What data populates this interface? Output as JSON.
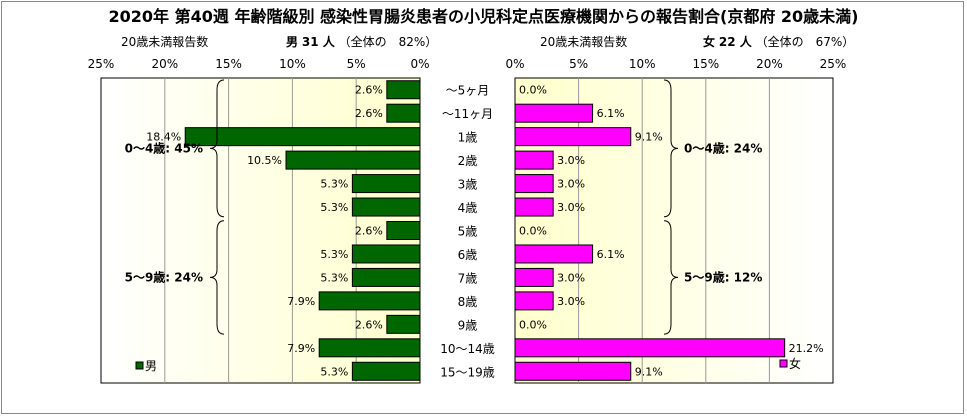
{
  "title": "2020年 第40週 年齢階級別 感染性胃腸炎患者の小児科定点医療機関からの報告割合(京都府 20歳未満)",
  "left_header": {
    "axis_caption": "20歳未満報告数",
    "sex": "男",
    "count": "31 人",
    "share": "（全体の　82%）"
  },
  "right_header": {
    "axis_caption": "20歳未満報告数",
    "sex": "女",
    "count": "22 人",
    "share": "（全体の　67%）"
  },
  "colors": {
    "male": "#006600",
    "female": "#ff00ff",
    "plot_bg_gradient": [
      "#ffffff",
      "#ffffcc"
    ],
    "grid": "#999999"
  },
  "chart_data": [
    {
      "type": "bar",
      "orientation": "horizontal-reversed",
      "series": [
        {
          "name": "男",
          "values": [
            2.6,
            2.6,
            18.4,
            10.5,
            5.3,
            5.3,
            2.6,
            5.3,
            5.3,
            7.9,
            2.6,
            7.9,
            5.3
          ]
        }
      ],
      "categories": [
        "～5ヶ月",
        "～11ヶ月",
        "1歳",
        "2歳",
        "3歳",
        "4歳",
        "5歳",
        "6歳",
        "7歳",
        "8歳",
        "9歳",
        "10～14歳",
        "15～19歳"
      ],
      "value_labels": [
        "2.6%",
        "2.6%",
        "18.4%",
        "10.5%",
        "5.3%",
        "5.3%",
        "2.6%",
        "5.3%",
        "5.3%",
        "7.9%",
        "2.6%",
        "7.9%",
        "5.3%"
      ],
      "xlim": [
        0,
        25
      ],
      "xticks": [
        "25%",
        "20%",
        "15%",
        "10%",
        "5%",
        "0%"
      ],
      "grid": true,
      "legend": "bottom-left",
      "annotations": [
        {
          "text": "0～4歳: 45%",
          "from": 0,
          "to": 5
        },
        {
          "text": "5～9歳: 24%",
          "from": 6,
          "to": 10
        }
      ]
    },
    {
      "type": "bar",
      "orientation": "horizontal",
      "series": [
        {
          "name": "女",
          "values": [
            0.0,
            6.1,
            9.1,
            3.0,
            3.0,
            3.0,
            0.0,
            6.1,
            3.0,
            3.0,
            0.0,
            21.2,
            9.1
          ]
        }
      ],
      "categories": [
        "～5ヶ月",
        "～11ヶ月",
        "1歳",
        "2歳",
        "3歳",
        "4歳",
        "5歳",
        "6歳",
        "7歳",
        "8歳",
        "9歳",
        "10～14歳",
        "15～19歳"
      ],
      "value_labels": [
        "0.0%",
        "6.1%",
        "9.1%",
        "3.0%",
        "3.0%",
        "3.0%",
        "0.0%",
        "6.1%",
        "3.0%",
        "3.0%",
        "0.0%",
        "21.2%",
        "9.1%"
      ],
      "xlim": [
        0,
        25
      ],
      "xticks": [
        "0%",
        "5%",
        "10%",
        "15%",
        "20%",
        "25%"
      ],
      "grid": true,
      "legend": "bottom-right",
      "annotations": [
        {
          "text": "0～4歳: 24%",
          "from": 0,
          "to": 5
        },
        {
          "text": "5～9歳: 12%",
          "from": 6,
          "to": 10
        }
      ]
    }
  ]
}
